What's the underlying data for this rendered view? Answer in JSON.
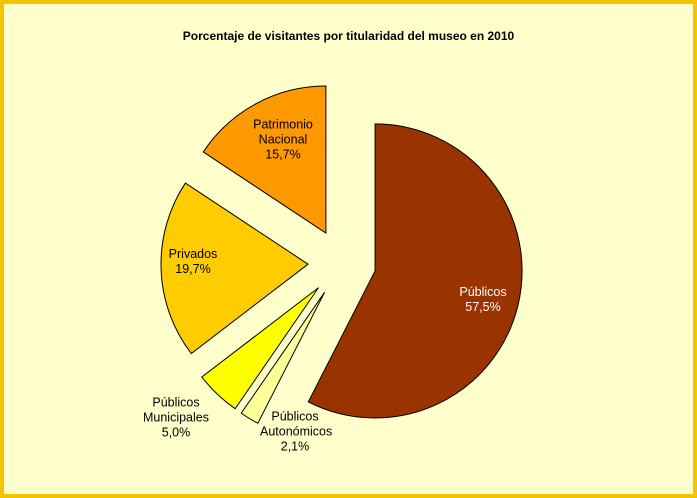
{
  "chart_data": {
    "type": "pie",
    "title": "Porcentaje de visitantes por titularidad del museo en 2010",
    "categories": [
      "Públicos",
      "Públicos Autonómicos",
      "Públicos Municipales",
      "Privados",
      "Patrimonio Nacional"
    ],
    "values": [
      57.5,
      2.1,
      5.0,
      19.7,
      15.7
    ],
    "value_labels": [
      "57,5%",
      "2,1%",
      "5,0%",
      "19,7%",
      "15,7%"
    ],
    "colors": [
      "#993300",
      "#ffff99",
      "#ffff00",
      "#ffcc00",
      "#ff9900"
    ]
  }
}
